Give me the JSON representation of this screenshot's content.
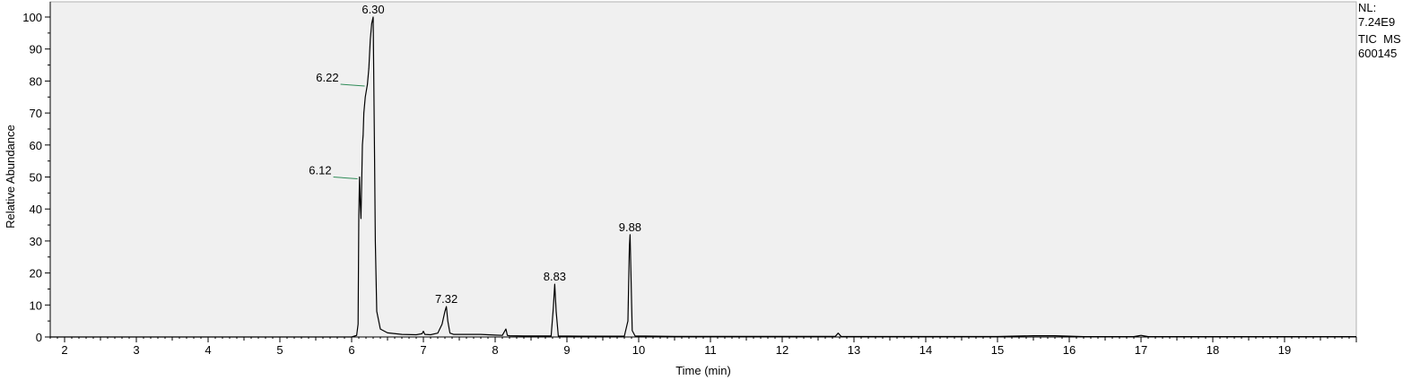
{
  "chart_data": {
    "type": "line",
    "xlabel": "Time (min)",
    "ylabel": "Relative Abundance",
    "xlim": [
      1.8,
      20.0
    ],
    "ylim": [
      0,
      102
    ],
    "x_ticks": [
      2,
      3,
      4,
      5,
      6,
      7,
      8,
      9,
      10,
      11,
      12,
      13,
      14,
      15,
      16,
      17,
      18,
      19
    ],
    "y_ticks": [
      0,
      10,
      20,
      30,
      40,
      50,
      60,
      70,
      80,
      90,
      100
    ],
    "grid": false,
    "background": "#f0f0f0",
    "line_color": "#000000",
    "annotation_marker_color": "#2e8b57",
    "peak_labels": [
      {
        "x": 6.3,
        "y": 100,
        "label": "6.30"
      },
      {
        "x": 6.22,
        "y": 79,
        "label": "6.22",
        "side": "left"
      },
      {
        "x": 6.12,
        "y": 50,
        "label": "6.12",
        "side": "left"
      },
      {
        "x": 7.32,
        "y": 9.5,
        "label": "7.32"
      },
      {
        "x": 8.83,
        "y": 16.5,
        "label": "8.83"
      },
      {
        "x": 9.88,
        "y": 32,
        "label": "9.88"
      }
    ],
    "series": [
      {
        "x": [
          1.8,
          6.0,
          6.07,
          6.09,
          6.1,
          6.11,
          6.12,
          6.13,
          6.14,
          6.15,
          6.16,
          6.17,
          6.19,
          6.22,
          6.24,
          6.26,
          6.28,
          6.3,
          6.32,
          6.33,
          6.35,
          6.4,
          6.5,
          6.7,
          6.9,
          6.98,
          7.0,
          7.02,
          7.1,
          7.2,
          7.26,
          7.3,
          7.32,
          7.34,
          7.37,
          7.42,
          7.6,
          7.8,
          8.0,
          8.1,
          8.15,
          8.17,
          8.2,
          8.4,
          8.78,
          8.81,
          8.83,
          8.85,
          8.88,
          9.2,
          9.8,
          9.85,
          9.87,
          9.88,
          9.89,
          9.91,
          9.95,
          10.5,
          12.0,
          12.74,
          12.78,
          12.82,
          13.0,
          15.0,
          15.5,
          15.8,
          16.2,
          16.9,
          17.0,
          17.1,
          20.0
        ],
        "y": [
          0,
          0,
          0.5,
          4,
          38,
          50,
          42,
          37,
          48,
          60,
          63,
          70,
          75,
          79,
          84,
          93,
          98,
          100,
          55,
          30,
          8,
          2.5,
          1.3,
          0.8,
          0.7,
          1.0,
          1.8,
          0.8,
          0.7,
          1.2,
          4,
          8,
          9.5,
          5,
          1.2,
          0.8,
          0.8,
          0.8,
          0.6,
          0.5,
          2.5,
          0.5,
          0.4,
          0.3,
          0.3,
          9,
          16.5,
          8,
          0.3,
          0.25,
          0.25,
          5,
          28,
          32,
          22,
          2,
          0.3,
          0.2,
          0.2,
          0.2,
          1.2,
          0.2,
          0.15,
          0.15,
          0.4,
          0.4,
          0.1,
          0.1,
          0.5,
          0.1,
          0.1
        ]
      }
    ]
  },
  "info_panel": {
    "nl_label": "NL:",
    "nl_value": "7.24E9",
    "trace_type": "TIC  MS",
    "file_name": "600145"
  }
}
